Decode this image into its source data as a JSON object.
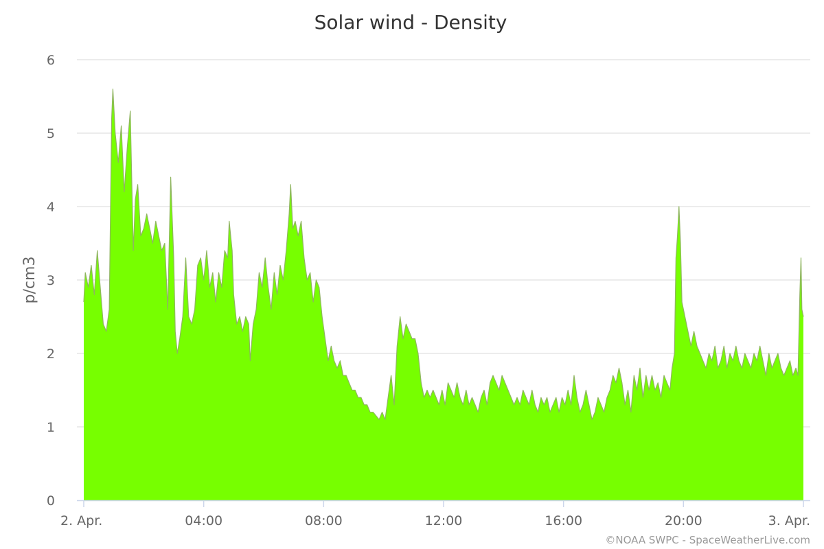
{
  "chart_data": {
    "type": "area",
    "title": "Solar wind - Density",
    "ylabel": "p/cm3",
    "xlabel": "",
    "ylim": [
      0,
      6
    ],
    "yticks": [
      "0",
      "1",
      "2",
      "3",
      "4",
      "5",
      "6"
    ],
    "xlim_hours": [
      0,
      24
    ],
    "xticks": [
      {
        "hour": 0,
        "label": "2. Apr."
      },
      {
        "hour": 4,
        "label": "04:00"
      },
      {
        "hour": 8,
        "label": "08:00"
      },
      {
        "hour": 12,
        "label": "12:00"
      },
      {
        "hour": 16,
        "label": "16:00"
      },
      {
        "hour": 20,
        "label": "20:00"
      },
      {
        "hour": 24,
        "label": "3. Apr."
      }
    ],
    "grid": true,
    "legend": false,
    "series": [
      {
        "color": "#77ff00",
        "points": [
          [
            0.0,
            2.7
          ],
          [
            0.05,
            3.1
          ],
          [
            0.15,
            2.9
          ],
          [
            0.25,
            3.2
          ],
          [
            0.35,
            2.8
          ],
          [
            0.45,
            3.4
          ],
          [
            0.55,
            2.9
          ],
          [
            0.65,
            2.4
          ],
          [
            0.75,
            2.3
          ],
          [
            0.85,
            2.6
          ],
          [
            0.93,
            5.2
          ],
          [
            0.97,
            5.6
          ],
          [
            1.05,
            5.0
          ],
          [
            1.15,
            4.6
          ],
          [
            1.25,
            5.1
          ],
          [
            1.35,
            4.2
          ],
          [
            1.45,
            4.8
          ],
          [
            1.55,
            5.3
          ],
          [
            1.65,
            3.4
          ],
          [
            1.72,
            4.1
          ],
          [
            1.8,
            4.3
          ],
          [
            1.9,
            3.6
          ],
          [
            2.0,
            3.7
          ],
          [
            2.1,
            3.9
          ],
          [
            2.2,
            3.7
          ],
          [
            2.3,
            3.5
          ],
          [
            2.4,
            3.8
          ],
          [
            2.5,
            3.6
          ],
          [
            2.6,
            3.4
          ],
          [
            2.7,
            3.5
          ],
          [
            2.8,
            2.6
          ],
          [
            2.9,
            4.4
          ],
          [
            3.0,
            3.3
          ],
          [
            3.05,
            2.3
          ],
          [
            3.12,
            2.0
          ],
          [
            3.2,
            2.2
          ],
          [
            3.3,
            2.5
          ],
          [
            3.4,
            3.3
          ],
          [
            3.5,
            2.5
          ],
          [
            3.6,
            2.4
          ],
          [
            3.7,
            2.6
          ],
          [
            3.8,
            3.2
          ],
          [
            3.9,
            3.3
          ],
          [
            4.0,
            3.0
          ],
          [
            4.1,
            3.4
          ],
          [
            4.2,
            2.9
          ],
          [
            4.3,
            3.1
          ],
          [
            4.4,
            2.7
          ],
          [
            4.5,
            3.1
          ],
          [
            4.6,
            2.9
          ],
          [
            4.7,
            3.4
          ],
          [
            4.8,
            3.3
          ],
          [
            4.85,
            3.8
          ],
          [
            4.95,
            3.4
          ],
          [
            5.0,
            2.8
          ],
          [
            5.1,
            2.4
          ],
          [
            5.2,
            2.5
          ],
          [
            5.3,
            2.3
          ],
          [
            5.4,
            2.5
          ],
          [
            5.5,
            2.4
          ],
          [
            5.55,
            1.9
          ],
          [
            5.65,
            2.4
          ],
          [
            5.75,
            2.6
          ],
          [
            5.85,
            3.1
          ],
          [
            5.95,
            2.9
          ],
          [
            6.05,
            3.3
          ],
          [
            6.15,
            2.9
          ],
          [
            6.25,
            2.6
          ],
          [
            6.35,
            3.1
          ],
          [
            6.45,
            2.8
          ],
          [
            6.55,
            3.2
          ],
          [
            6.65,
            3.0
          ],
          [
            6.75,
            3.4
          ],
          [
            6.85,
            3.9
          ],
          [
            6.9,
            4.3
          ],
          [
            6.97,
            3.7
          ],
          [
            7.05,
            3.8
          ],
          [
            7.15,
            3.6
          ],
          [
            7.25,
            3.8
          ],
          [
            7.35,
            3.3
          ],
          [
            7.45,
            3.0
          ],
          [
            7.55,
            3.1
          ],
          [
            7.65,
            2.7
          ],
          [
            7.75,
            3.0
          ],
          [
            7.85,
            2.9
          ],
          [
            7.95,
            2.5
          ],
          [
            8.05,
            2.2
          ],
          [
            8.15,
            1.9
          ],
          [
            8.25,
            2.1
          ],
          [
            8.35,
            1.9
          ],
          [
            8.45,
            1.8
          ],
          [
            8.55,
            1.9
          ],
          [
            8.65,
            1.7
          ],
          [
            8.75,
            1.7
          ],
          [
            8.85,
            1.6
          ],
          [
            8.95,
            1.5
          ],
          [
            9.05,
            1.5
          ],
          [
            9.15,
            1.4
          ],
          [
            9.25,
            1.4
          ],
          [
            9.35,
            1.3
          ],
          [
            9.45,
            1.3
          ],
          [
            9.55,
            1.2
          ],
          [
            9.65,
            1.2
          ],
          [
            9.75,
            1.15
          ],
          [
            9.85,
            1.1
          ],
          [
            9.95,
            1.2
          ],
          [
            10.05,
            1.1
          ],
          [
            10.15,
            1.4
          ],
          [
            10.25,
            1.7
          ],
          [
            10.35,
            1.3
          ],
          [
            10.45,
            2.1
          ],
          [
            10.55,
            2.5
          ],
          [
            10.65,
            2.2
          ],
          [
            10.75,
            2.4
          ],
          [
            10.85,
            2.3
          ],
          [
            10.95,
            2.2
          ],
          [
            11.05,
            2.2
          ],
          [
            11.15,
            2.0
          ],
          [
            11.25,
            1.6
          ],
          [
            11.35,
            1.4
          ],
          [
            11.45,
            1.5
          ],
          [
            11.55,
            1.4
          ],
          [
            11.65,
            1.5
          ],
          [
            11.75,
            1.4
          ],
          [
            11.85,
            1.3
          ],
          [
            11.95,
            1.5
          ],
          [
            12.05,
            1.3
          ],
          [
            12.15,
            1.6
          ],
          [
            12.25,
            1.5
          ],
          [
            12.35,
            1.4
          ],
          [
            12.45,
            1.6
          ],
          [
            12.55,
            1.4
          ],
          [
            12.65,
            1.3
          ],
          [
            12.75,
            1.5
          ],
          [
            12.85,
            1.3
          ],
          [
            12.95,
            1.4
          ],
          [
            13.05,
            1.3
          ],
          [
            13.15,
            1.2
          ],
          [
            13.25,
            1.4
          ],
          [
            13.35,
            1.5
          ],
          [
            13.45,
            1.3
          ],
          [
            13.55,
            1.6
          ],
          [
            13.65,
            1.7
          ],
          [
            13.75,
            1.6
          ],
          [
            13.85,
            1.5
          ],
          [
            13.95,
            1.7
          ],
          [
            14.05,
            1.6
          ],
          [
            14.15,
            1.5
          ],
          [
            14.25,
            1.4
          ],
          [
            14.35,
            1.3
          ],
          [
            14.45,
            1.4
          ],
          [
            14.55,
            1.3
          ],
          [
            14.65,
            1.5
          ],
          [
            14.75,
            1.4
          ],
          [
            14.85,
            1.3
          ],
          [
            14.95,
            1.5
          ],
          [
            15.05,
            1.3
          ],
          [
            15.15,
            1.2
          ],
          [
            15.25,
            1.4
          ],
          [
            15.35,
            1.3
          ],
          [
            15.45,
            1.4
          ],
          [
            15.55,
            1.2
          ],
          [
            15.65,
            1.3
          ],
          [
            15.75,
            1.4
          ],
          [
            15.85,
            1.2
          ],
          [
            15.95,
            1.4
          ],
          [
            16.05,
            1.3
          ],
          [
            16.15,
            1.5
          ],
          [
            16.25,
            1.3
          ],
          [
            16.35,
            1.7
          ],
          [
            16.45,
            1.4
          ],
          [
            16.55,
            1.2
          ],
          [
            16.65,
            1.3
          ],
          [
            16.75,
            1.5
          ],
          [
            16.85,
            1.3
          ],
          [
            16.95,
            1.1
          ],
          [
            17.05,
            1.2
          ],
          [
            17.15,
            1.4
          ],
          [
            17.25,
            1.3
          ],
          [
            17.35,
            1.2
          ],
          [
            17.45,
            1.4
          ],
          [
            17.55,
            1.5
          ],
          [
            17.65,
            1.7
          ],
          [
            17.75,
            1.6
          ],
          [
            17.85,
            1.8
          ],
          [
            17.95,
            1.6
          ],
          [
            18.05,
            1.3
          ],
          [
            18.15,
            1.5
          ],
          [
            18.25,
            1.2
          ],
          [
            18.35,
            1.7
          ],
          [
            18.45,
            1.5
          ],
          [
            18.55,
            1.8
          ],
          [
            18.65,
            1.4
          ],
          [
            18.75,
            1.7
          ],
          [
            18.85,
            1.5
          ],
          [
            18.95,
            1.7
          ],
          [
            19.05,
            1.5
          ],
          [
            19.15,
            1.6
          ],
          [
            19.25,
            1.4
          ],
          [
            19.35,
            1.7
          ],
          [
            19.45,
            1.6
          ],
          [
            19.55,
            1.5
          ],
          [
            19.62,
            1.8
          ],
          [
            19.7,
            2.0
          ],
          [
            19.75,
            3.3
          ],
          [
            19.8,
            3.6
          ],
          [
            19.85,
            4.0
          ],
          [
            19.9,
            3.5
          ],
          [
            19.95,
            2.7
          ],
          [
            20.05,
            2.5
          ],
          [
            20.15,
            2.3
          ],
          [
            20.25,
            2.1
          ],
          [
            20.35,
            2.3
          ],
          [
            20.45,
            2.1
          ],
          [
            20.55,
            2.0
          ],
          [
            20.65,
            1.9
          ],
          [
            20.75,
            1.8
          ],
          [
            20.85,
            2.0
          ],
          [
            20.95,
            1.9
          ],
          [
            21.05,
            2.1
          ],
          [
            21.15,
            1.8
          ],
          [
            21.25,
            1.9
          ],
          [
            21.35,
            2.1
          ],
          [
            21.45,
            1.8
          ],
          [
            21.55,
            2.0
          ],
          [
            21.65,
            1.9
          ],
          [
            21.75,
            2.1
          ],
          [
            21.85,
            1.9
          ],
          [
            21.95,
            1.8
          ],
          [
            22.05,
            2.0
          ],
          [
            22.15,
            1.9
          ],
          [
            22.25,
            1.8
          ],
          [
            22.35,
            2.0
          ],
          [
            22.45,
            1.9
          ],
          [
            22.55,
            2.1
          ],
          [
            22.65,
            1.9
          ],
          [
            22.75,
            1.7
          ],
          [
            22.85,
            2.0
          ],
          [
            22.95,
            1.8
          ],
          [
            23.05,
            1.9
          ],
          [
            23.15,
            2.0
          ],
          [
            23.25,
            1.8
          ],
          [
            23.35,
            1.7
          ],
          [
            23.45,
            1.8
          ],
          [
            23.55,
            1.9
          ],
          [
            23.65,
            1.7
          ],
          [
            23.75,
            1.8
          ],
          [
            23.82,
            1.7
          ],
          [
            23.88,
            2.8
          ],
          [
            23.92,
            3.3
          ],
          [
            23.95,
            2.6
          ],
          [
            24.0,
            2.5
          ]
        ]
      }
    ]
  },
  "credit": "©NOAA SWPC - SpaceWeatherLive.com"
}
